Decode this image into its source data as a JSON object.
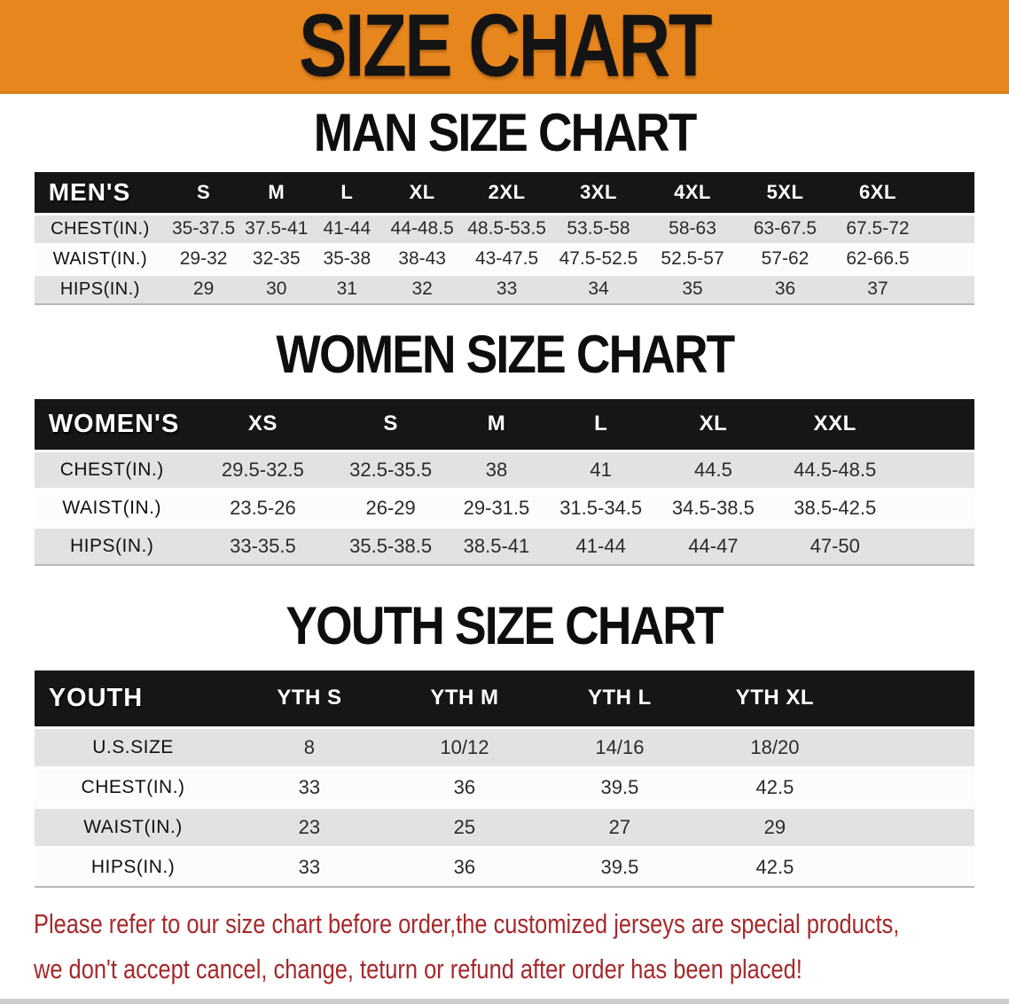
{
  "banner": {
    "title": "SIZE CHART"
  },
  "man": {
    "heading": "MAN SIZE CHART",
    "label": "MEN'S",
    "columns": [
      "S",
      "M",
      "L",
      "XL",
      "2XL",
      "3XL",
      "4XL",
      "5XL",
      "6XL"
    ],
    "rows": [
      {
        "label": "CHEST(IN.)",
        "values": [
          "35-37.5",
          "37.5-41",
          "41-44",
          "44-48.5",
          "48.5-53.5",
          "53.5-58",
          "58-63",
          "63-67.5",
          "67.5-72"
        ]
      },
      {
        "label": "WAIST(IN.)",
        "values": [
          "29-32",
          "32-35",
          "35-38",
          "38-43",
          "43-47.5",
          "47.5-52.5",
          "52.5-57",
          "57-62",
          "62-66.5"
        ]
      },
      {
        "label": "HIPS(IN.)",
        "values": [
          "29",
          "30",
          "31",
          "32",
          "33",
          "34",
          "35",
          "36",
          "37"
        ]
      }
    ]
  },
  "women": {
    "heading": "WOMEN SIZE CHART",
    "label": "WOMEN'S",
    "columns": [
      "XS",
      "S",
      "M",
      "L",
      "XL",
      "XXL"
    ],
    "rows": [
      {
        "label": "CHEST(IN.)",
        "values": [
          "29.5-32.5",
          "32.5-35.5",
          "38",
          "41",
          "44.5",
          "44.5-48.5"
        ]
      },
      {
        "label": "WAIST(IN.)",
        "values": [
          "23.5-26",
          "26-29",
          "29-31.5",
          "31.5-34.5",
          "34.5-38.5",
          "38.5-42.5"
        ]
      },
      {
        "label": "HIPS(IN.)",
        "values": [
          "33-35.5",
          "35.5-38.5",
          "38.5-41",
          "41-44",
          "44-47",
          "47-50"
        ]
      }
    ]
  },
  "youth": {
    "heading": "YOUTH SIZE CHART",
    "label": "YOUTH",
    "columns": [
      "YTH S",
      "YTH M",
      "YTH L",
      "YTH XL"
    ],
    "rows": [
      {
        "label": "U.S.SIZE",
        "values": [
          "8",
          "10/12",
          "14/16",
          "18/20"
        ]
      },
      {
        "label": "CHEST(IN.)",
        "values": [
          "33",
          "36",
          "39.5",
          "42.5"
        ]
      },
      {
        "label": "WAIST(IN.)",
        "values": [
          "23",
          "25",
          "27",
          "29"
        ]
      },
      {
        "label": "HIPS(IN.)",
        "values": [
          "33",
          "36",
          "39.5",
          "42.5"
        ]
      }
    ]
  },
  "disclaimer": {
    "line1": "Please refer to our size chart before order,the customized jerseys are special products,",
    "line2": "we don't accept cancel, change, teturn or refund after order has been placed!"
  },
  "colors": {
    "banner_bg": "#E8861E",
    "header_bg": "#161616",
    "row_gray": "#E2E2E2",
    "disclaimer_red": "#A6292B"
  }
}
